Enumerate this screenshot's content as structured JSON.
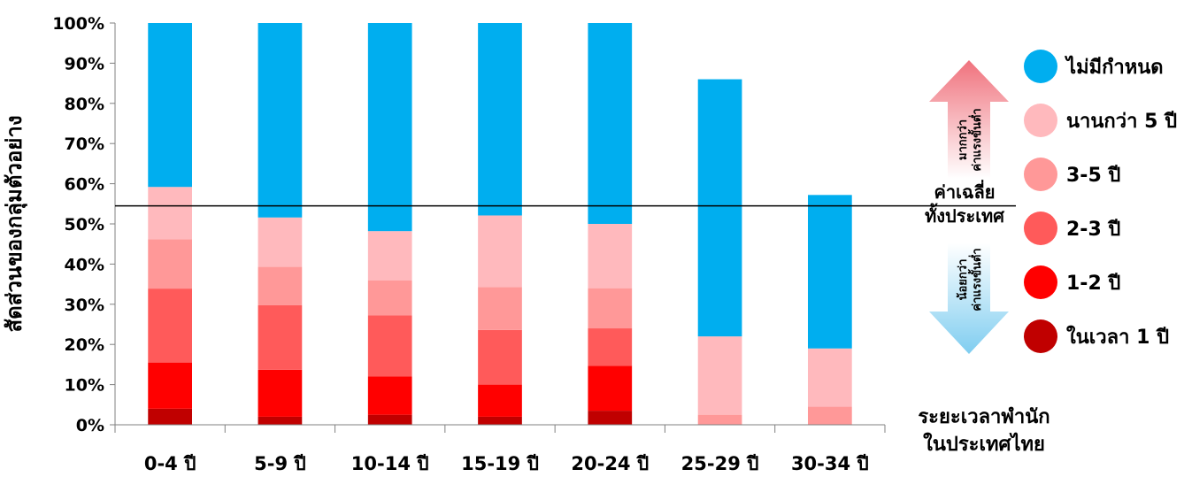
{
  "chart_data": {
    "type": "bar",
    "stacked": true,
    "percent": true,
    "ylabel": "สัดส่วนของกลุ่มตัวอย่าง",
    "xlabel": "ระยะเวลาพำนัก ในประเทศไทย",
    "xlabel_lines": [
      "ระยะเวลาพำนัก",
      "ในประเทศไทย"
    ],
    "ylim": [
      0,
      100
    ],
    "yticks": [
      "0%",
      "10%",
      "20%",
      "30%",
      "40%",
      "50%",
      "60%",
      "70%",
      "80%",
      "90%",
      "100%"
    ],
    "categories": [
      "0-4 ปี",
      "5-9 ปี",
      "10-14 ปี",
      "15-19 ปี",
      "20-24 ปี",
      "25-29 ปี",
      "30-34 ปี"
    ],
    "series": [
      {
        "name": "ในเวลา 1 ปี",
        "color": "#c00000",
        "values": [
          4,
          2,
          2.5,
          2,
          3.5,
          0,
          0
        ]
      },
      {
        "name": "1-2 ปี",
        "color": "#ff0000",
        "values": [
          11.5,
          11.7,
          9.5,
          8,
          11.2,
          0,
          0
        ]
      },
      {
        "name": "2-3 ปี",
        "color": "#ff5a5a",
        "values": [
          18.4,
          16.1,
          15.2,
          13.6,
          9.3,
          0,
          0
        ]
      },
      {
        "name": "3-5 ปี",
        "color": "#ff9898",
        "values": [
          12.3,
          9.5,
          8.7,
          10.7,
          10,
          2.5,
          4.5
        ]
      },
      {
        "name": "นานกว่า 5 ปี",
        "color": "#ffb9bd",
        "values": [
          13,
          12.3,
          12.3,
          17.8,
          16,
          19.5,
          14.5
        ]
      },
      {
        "name": "ไม่มีกำหนด",
        "color": "#00aeef",
        "values": [
          40.8,
          48.4,
          51.8,
          47.9,
          50,
          64,
          38.2
        ]
      }
    ],
    "legend_position": "right",
    "reference_line": {
      "value": 54.5,
      "label": "ค่าเฉลี่ย ทั้งประเทศ",
      "label_lines": [
        "ค่าเฉลี่ย",
        "ทั้งประเทศ"
      ]
    },
    "arrow_labels": {
      "up": [
        "มากกว่า",
        "ค่าแรงขั้นต่ำ"
      ],
      "down": [
        "น้อยกว่า",
        "ค่าแรงขั้นต่ำ"
      ]
    },
    "grid": false
  }
}
